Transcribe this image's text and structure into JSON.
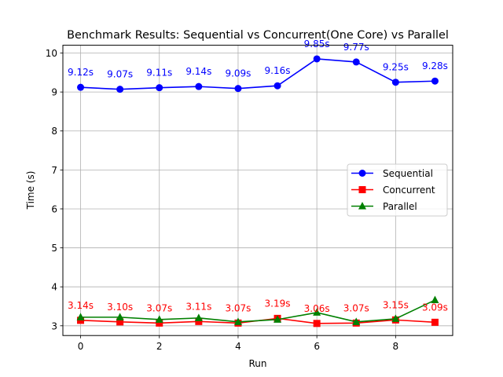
{
  "chart_data": {
    "type": "line",
    "title": "Benchmark Results: Sequential vs Concurrent(One Core) vs Parallel",
    "xlabel": "Run",
    "ylabel": "Time (s)",
    "x": [
      0,
      1,
      2,
      3,
      4,
      5,
      6,
      7,
      8,
      9
    ],
    "xticks": [
      0,
      2,
      4,
      6,
      8
    ],
    "yticks": [
      3,
      4,
      5,
      6,
      7,
      8,
      9,
      10
    ],
    "xlim": [
      -0.45,
      9.45
    ],
    "ylim": [
      2.75,
      10.2
    ],
    "grid": true,
    "legend_position": "center right",
    "series": [
      {
        "name": "Sequential",
        "color": "#0000ff",
        "marker": "circle",
        "values": [
          9.12,
          9.07,
          9.11,
          9.14,
          9.09,
          9.16,
          9.85,
          9.77,
          9.25,
          9.28
        ],
        "labels": [
          "9.12s",
          "9.07s",
          "9.11s",
          "9.14s",
          "9.09s",
          "9.16s",
          "9.85s",
          "9.77s",
          "9.25s",
          "9.28s"
        ]
      },
      {
        "name": "Concurrent",
        "color": "#ff0000",
        "marker": "square",
        "values": [
          3.14,
          3.1,
          3.07,
          3.11,
          3.07,
          3.19,
          3.06,
          3.07,
          3.15,
          3.09
        ],
        "labels": [
          "3.14s",
          "3.10s",
          "3.07s",
          "3.11s",
          "3.07s",
          "3.19s",
          "3.06s",
          "3.07s",
          "3.15s",
          "3.09s"
        ]
      },
      {
        "name": "Parallel",
        "color": "#008000",
        "marker": "triangle",
        "values": [
          3.22,
          3.22,
          3.16,
          3.2,
          3.1,
          3.16,
          3.34,
          3.1,
          3.18,
          3.66
        ]
      }
    ]
  }
}
